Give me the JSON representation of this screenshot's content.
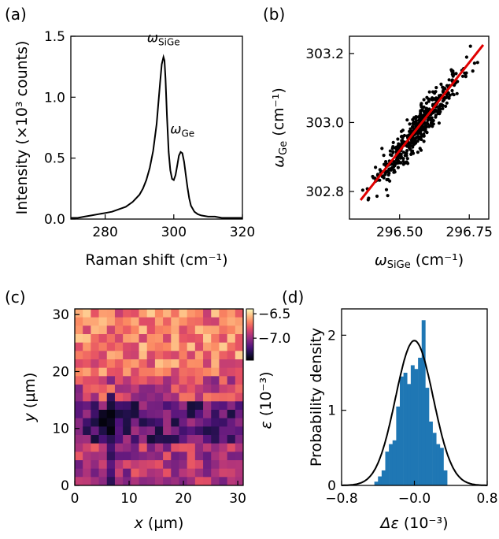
{
  "panels": {
    "a": "(a)",
    "b": "(b)",
    "c": "(c)",
    "d": "(d)"
  },
  "chart_data": [
    {
      "id": "a",
      "type": "line",
      "xlabel": "Raman shift (cm⁻¹)",
      "ylabel": "Intensity (×10³ counts)",
      "xlim": [
        270,
        320
      ],
      "ylim": [
        0,
        1.5
      ],
      "xticks": [
        "280",
        "300",
        "320"
      ],
      "xtick_values": [
        280,
        300,
        320
      ],
      "yticks": [
        "0.0",
        "0.5",
        "1.0",
        "1.5"
      ],
      "ytick_values": [
        0,
        0.5,
        1.0,
        1.5
      ],
      "annotations": [
        {
          "symbol": "ω",
          "sub": "SiGe",
          "x": 297,
          "y": 1.45
        },
        {
          "symbol": "ω",
          "sub": "Ge",
          "x": 302.5,
          "y": 0.7
        }
      ],
      "series": [
        {
          "color": "#000000",
          "x": [
            270,
            272,
            274,
            276,
            278,
            280,
            282,
            284,
            286,
            288,
            290,
            291,
            292,
            293,
            294,
            295,
            295.5,
            296,
            296.5,
            297,
            297.3,
            297.6,
            298,
            298.5,
            299,
            299.5,
            300,
            300.5,
            301,
            301.5,
            302,
            302.5,
            303,
            303.5,
            304,
            304.5,
            305,
            306,
            307,
            308,
            310,
            312,
            314,
            316,
            318,
            320
          ],
          "values": [
            0.01,
            0.01,
            0.02,
            0.03,
            0.04,
            0.05,
            0.06,
            0.08,
            0.1,
            0.14,
            0.2,
            0.25,
            0.32,
            0.42,
            0.56,
            0.78,
            0.95,
            1.12,
            1.27,
            1.33,
            1.3,
            1.15,
            0.85,
            0.55,
            0.4,
            0.33,
            0.32,
            0.36,
            0.44,
            0.52,
            0.55,
            0.54,
            0.47,
            0.36,
            0.26,
            0.17,
            0.11,
            0.06,
            0.04,
            0.03,
            0.02,
            0.02,
            0.01,
            0.01,
            0.01,
            0.01
          ]
        }
      ]
    },
    {
      "id": "b",
      "type": "scatter",
      "xlabel_symbol": "ω",
      "xlabel_sub": "SiGe",
      "xlabel_rest": " (cm⁻¹)",
      "ylabel_symbol": "ω",
      "ylabel_sub": "Ge",
      "ylabel_rest": " (cm⁻¹)",
      "xlim": [
        296.32,
        296.82
      ],
      "ylim": [
        302.72,
        303.25
      ],
      "xticks": [
        "296.50",
        "296.75"
      ],
      "xtick_values": [
        296.5,
        296.75
      ],
      "yticks": [
        "302.8",
        "303.0",
        "303.2"
      ],
      "ytick_values": [
        302.8,
        303.0,
        303.2
      ],
      "point_color": "#000000",
      "point_count": 500,
      "point_center": [
        296.57,
        302.985
      ],
      "point_spread": [
        0.075,
        0.045
      ],
      "fit": {
        "color": "#e00000",
        "x": [
          296.36,
          296.8
        ],
        "y": [
          302.775,
          303.225
        ]
      }
    },
    {
      "id": "c",
      "type": "heatmap",
      "xlabel_symbol": "x",
      "xlabel_rest": " (µm)",
      "ylabel_symbol": "y",
      "ylabel_rest": " (µm)",
      "xlim": [
        0,
        31
      ],
      "ylim": [
        0,
        31
      ],
      "xticks": [
        "0",
        "10",
        "20",
        "30"
      ],
      "xtick_values": [
        0,
        10,
        20,
        30
      ],
      "yticks": [
        "0",
        "10",
        "20",
        "30"
      ],
      "ytick_values": [
        0,
        10,
        20,
        30
      ],
      "grid_size": [
        21,
        21
      ],
      "colorbar": {
        "range": [
          -7.45,
          -6.4
        ],
        "ticks": [
          "−6.5",
          "−7.0"
        ],
        "tick_values": [
          -6.5,
          -7.0
        ],
        "label_symbol": "ε",
        "label_rest": " (10⁻³)",
        "colormap": [
          "#000004",
          "#1c1044",
          "#4f127b",
          "#812581",
          "#b5367a",
          "#e55064",
          "#fb8761",
          "#fec287",
          "#fcfdbf"
        ]
      }
    },
    {
      "id": "d",
      "type": "bar",
      "xlabel_symbol": "Δε",
      "xlabel_rest": " (10⁻³)",
      "ylabel": "Probability density",
      "xlim": [
        -0.8,
        0.8
      ],
      "ylim": [
        0,
        2.35
      ],
      "xticks": [
        "−0.8",
        "−0.0",
        "0.8"
      ],
      "xtick_values": [
        -0.8,
        0,
        0.8
      ],
      "yticks": [
        "0",
        "1",
        "2"
      ],
      "ytick_values": [
        0,
        1,
        2
      ],
      "bar_color": "#1f77b4",
      "bin_width": 0.04,
      "bin_starts": [
        -0.44,
        -0.4,
        -0.36,
        -0.32,
        -0.28,
        -0.24,
        -0.2,
        -0.16,
        -0.12,
        -0.08,
        -0.04,
        0.0,
        0.04,
        0.08,
        0.12,
        0.16,
        0.2,
        0.24,
        0.28,
        0.32
      ],
      "values": [
        0.05,
        0.12,
        0.2,
        0.45,
        0.55,
        0.6,
        1.05,
        1.45,
        1.5,
        1.35,
        1.6,
        1.55,
        1.7,
        2.2,
        1.3,
        0.85,
        0.7,
        0.55,
        0.5,
        0.2
      ],
      "fit": {
        "type": "gaussian",
        "mean": 0.0,
        "sigma": 0.207,
        "color": "#000000"
      }
    }
  ]
}
